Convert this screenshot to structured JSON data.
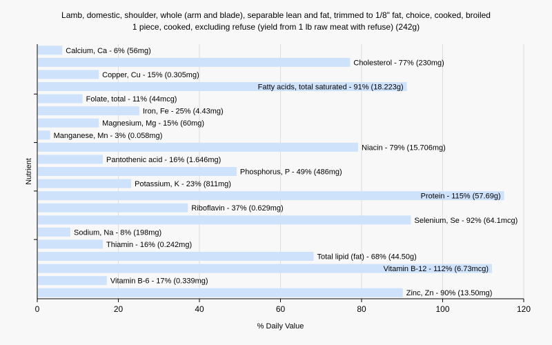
{
  "chart_data": {
    "type": "bar",
    "orientation": "horizontal",
    "title": "Lamb, domestic, shoulder, whole (arm and blade), separable lean and fat, trimmed to 1/8\" fat, choice, cooked, broiled",
    "subtitle": "1 piece, cooked, excluding refuse (yield from 1 lb raw meat with refuse) (242g)",
    "xlabel": "% Daily Value",
    "ylabel": "Nutrient",
    "xlim": [
      0,
      120
    ],
    "xticks": [
      "0",
      "20",
      "40",
      "60",
      "80",
      "100",
      "120"
    ],
    "grid": true,
    "bar_color": "#cfe2fb",
    "categories": [
      "Calcium, Ca",
      "Cholesterol",
      "Copper, Cu",
      "Fatty acids, total saturated",
      "Folate, total",
      "Iron, Fe",
      "Magnesium, Mg",
      "Manganese, Mn",
      "Niacin",
      "Pantothenic acid",
      "Phosphorus, P",
      "Potassium, K",
      "Protein",
      "Riboflavin",
      "Selenium, Se",
      "Sodium, Na",
      "Thiamin",
      "Total lipid (fat)",
      "Vitamin B-12",
      "Vitamin B-6",
      "Zinc, Zn"
    ],
    "values": [
      6,
      77,
      15,
      91,
      11,
      25,
      15,
      3,
      79,
      16,
      49,
      23,
      115,
      37,
      92,
      8,
      16,
      68,
      112,
      17,
      90
    ],
    "labels": [
      "Calcium, Ca - 6% (56mg)",
      "Cholesterol - 77% (230mg)",
      "Copper, Cu - 15% (0.305mg)",
      "Fatty acids, total saturated - 91% (18.223g)",
      "Folate, total - 11% (44mcg)",
      "Iron, Fe - 25% (4.43mg)",
      "Magnesium, Mg - 15% (60mg)",
      "Manganese, Mn - 3% (0.058mg)",
      "Niacin - 79% (15.706mg)",
      "Pantothenic acid - 16% (1.646mg)",
      "Phosphorus, P - 49% (486mg)",
      "Potassium, K - 23% (811mg)",
      "Protein - 115% (57.69g)",
      "Riboflavin - 37% (0.629mg)",
      "Selenium, Se - 92% (64.1mcg)",
      "Sodium, Na - 8% (198mg)",
      "Thiamin - 16% (0.242mg)",
      "Total lipid (fat) - 68% (44.50g)",
      "Vitamin B-12 - 112% (6.73mcg)",
      "Vitamin B-6 - 17% (0.339mg)",
      "Zinc, Zn - 90% (13.50mg)"
    ]
  }
}
